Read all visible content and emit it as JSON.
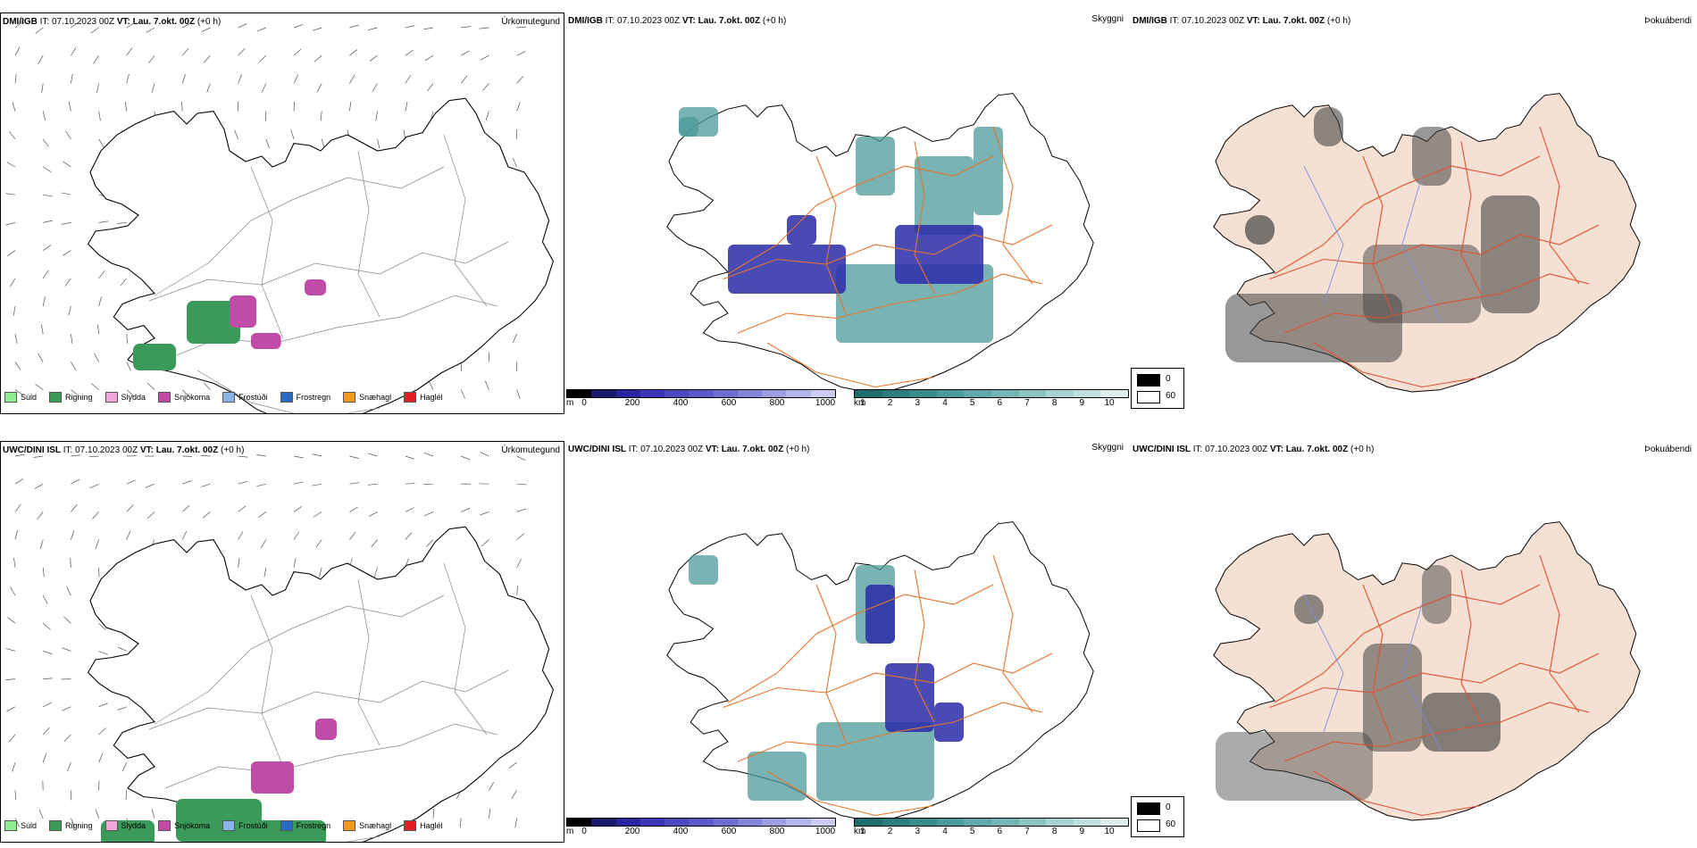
{
  "rows": [
    {
      "model": "DMI/IGB",
      "it_label": "IT:",
      "it_value": "07.10.2023 00Z",
      "vt_label": "VT:",
      "vt_value": "Lau. 7.okt. 00Z",
      "lead": "(+0 h)"
    },
    {
      "model": "UWC/DINI ISL",
      "it_label": "IT:",
      "it_value": "07.10.2023 00Z",
      "vt_label": "VT:",
      "vt_value": "Lau. 7.okt. 00Z",
      "lead": "(+0 h)"
    }
  ],
  "panel_types": {
    "precip": "Úrkomutegund",
    "visibility": "Skyggni",
    "fog": "Þokuábendi"
  },
  "precip_legend": [
    {
      "label": "Súld",
      "color": "#90ee90"
    },
    {
      "label": "Rigning",
      "color": "#3a9a5a"
    },
    {
      "label": "Slydda",
      "color": "#f0a8d8"
    },
    {
      "label": "Snjókoma",
      "color": "#c04ca8"
    },
    {
      "label": "Frostúði",
      "color": "#8ab4e8"
    },
    {
      "label": "Frostregn",
      "color": "#2a6cc0"
    },
    {
      "label": "Snæhagl",
      "color": "#f09a20"
    },
    {
      "label": "Haglél",
      "color": "#e02020"
    }
  ],
  "cloudbase_bar": {
    "unit": "m",
    "ticks": [
      "0",
      "200",
      "400",
      "600",
      "800",
      "1000"
    ],
    "colors": [
      "#000000",
      "#1a1a6e",
      "#2626a0",
      "#3a3ab8",
      "#4a4ac0",
      "#5a5ac8",
      "#6e6ed0",
      "#8484d8",
      "#9c9ce0",
      "#b4b4e8",
      "#ccccf0"
    ]
  },
  "visibility_bar": {
    "unit": "km",
    "ticks": [
      "1",
      "2",
      "3",
      "4",
      "5",
      "6",
      "7",
      "8",
      "9",
      "10"
    ],
    "colors": [
      "#1e6e6e",
      "#2a7e7e",
      "#3a8c8c",
      "#4c9a9a",
      "#5ea8a8",
      "#74b6b6",
      "#8cc4c4",
      "#a6d2d2",
      "#c0e0e0",
      "#dceeee"
    ]
  },
  "fog_legend": {
    "low": "0",
    "high": "60"
  },
  "map_colors": {
    "land_fog": "#f5e1d3",
    "roads": "#e8742a",
    "roads_fog": "#e05030",
    "rivers": "#7a8ee0",
    "coast": "#000000",
    "rain": "#3a9a5a",
    "snow": "#c04ca8",
    "vis_teal": "#4c9a9a",
    "vis_blue": "#2a2aa8"
  }
}
